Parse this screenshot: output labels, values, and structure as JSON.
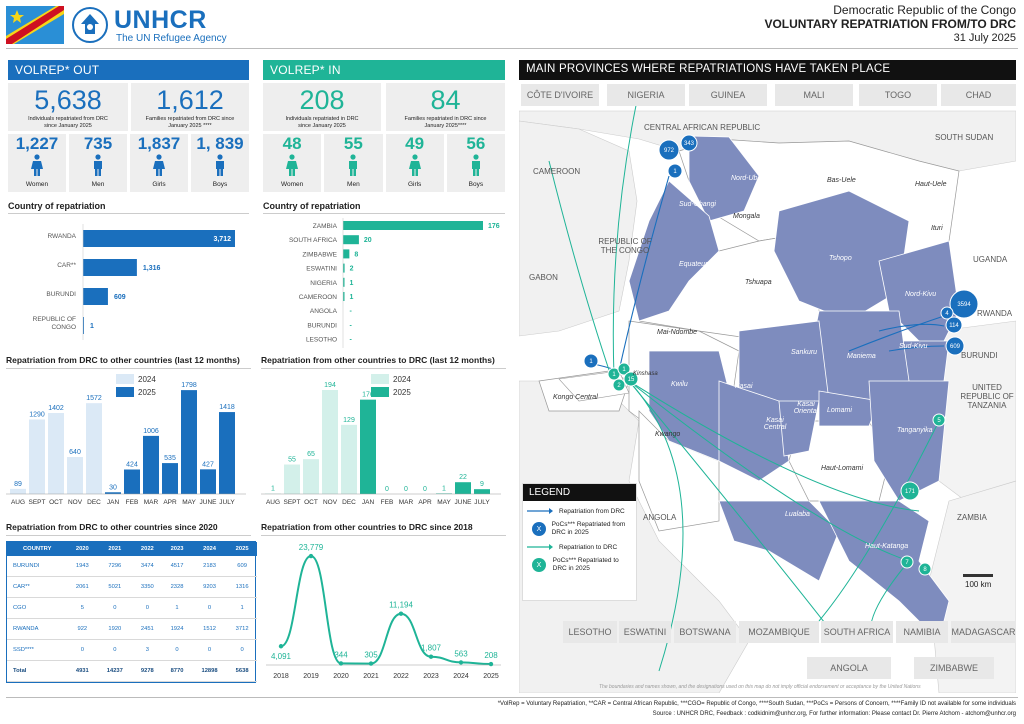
{
  "header": {
    "org": "UNHCR",
    "tagline": "The UN Refugee Agency",
    "country": "Democratic Republic of the Congo",
    "title": "VOLUNTARY REPATRIATION FROM/TO DRC",
    "date": "31 July 2025"
  },
  "colors": {
    "blue": "#1a6fbd",
    "teal": "#1fb497",
    "lightblue": "#dbe9f6",
    "lightteal": "#d3f0ea",
    "mapfill": "#7e8cbe"
  },
  "out": {
    "title": "VOLREP* OUT",
    "individuals": "5,638",
    "individuals_txt": "Individuals repatriated from DRC since January 2025",
    "families": "1,612",
    "families_txt": "Families repatriated from DRC since January 2025 ****",
    "demo": [
      {
        "v": "1,227",
        "l": "Women"
      },
      {
        "v": "735",
        "l": "Men"
      },
      {
        "v": "1,837",
        "l": "Girls"
      },
      {
        "v": "1, 839",
        "l": "Boys"
      }
    ],
    "country_title": "Country of repatriation",
    "countries": [
      {
        "name": "RWANDA",
        "value": 3712,
        "label": "3,712"
      },
      {
        "name": "CAR**",
        "value": 1316,
        "label": "1,316"
      },
      {
        "name": "BURUNDI",
        "value": 609,
        "label": "609"
      },
      {
        "name": "REPUBLIC OF CONGO",
        "value": 1,
        "label": "1"
      }
    ],
    "monthly_title": "Repatriation from DRC to other countries (last 12 months)",
    "legend": [
      "2024",
      "2025"
    ],
    "months": [
      "AUG",
      "SEPT",
      "OCT",
      "NOV",
      "DEC",
      "JAN",
      "FEB",
      "MAR",
      "APR",
      "MAY",
      "JUNE",
      "JULY"
    ],
    "monthly": [
      {
        "v": 89,
        "y": 2024
      },
      {
        "v": 1290,
        "y": 2024
      },
      {
        "v": 1402,
        "y": 2024
      },
      {
        "v": 640,
        "y": 2024
      },
      {
        "v": 1572,
        "y": 2024
      },
      {
        "v": 30,
        "y": 2025
      },
      {
        "v": 424,
        "y": 2025
      },
      {
        "v": 1006,
        "y": 2025
      },
      {
        "v": 535,
        "y": 2025
      },
      {
        "v": 1798,
        "y": 2025
      },
      {
        "v": 427,
        "y": 2025
      },
      {
        "v": 1418,
        "y": 2025
      }
    ],
    "table_title": "Repatriation from DRC to other countries since 2020",
    "table_head": [
      "COUNTRY",
      "2020",
      "2021",
      "2022",
      "2023",
      "2024",
      "2025"
    ],
    "table_rows": [
      [
        "BURUNDI",
        "1943",
        "7296",
        "3474",
        "4517",
        "2183",
        "609"
      ],
      [
        "CAR**",
        "2061",
        "5021",
        "3350",
        "2328",
        "9203",
        "1316"
      ],
      [
        "CGO",
        "5",
        "0",
        "0",
        "1",
        "0",
        "1"
      ],
      [
        "RWANDA",
        "922",
        "1920",
        "2451",
        "1924",
        "1512",
        "3712"
      ],
      [
        "SSD****",
        "0",
        "0",
        "3",
        "0",
        "0",
        "0"
      ],
      [
        "Total",
        "4931",
        "14237",
        "9278",
        "8770",
        "12898",
        "5638"
      ]
    ]
  },
  "in": {
    "title": "VOLREP* IN",
    "individuals": "208",
    "individuals_txt": "Individuals repatriated in DRC since January 2025",
    "families": "84",
    "families_txt": "Families repatriated in DRC since January 2025****",
    "demo": [
      {
        "v": "48",
        "l": "Women"
      },
      {
        "v": "55",
        "l": "Men"
      },
      {
        "v": "49",
        "l": "Girls"
      },
      {
        "v": "56",
        "l": "Boys"
      }
    ],
    "country_title": "Country of repatriation",
    "countries": [
      {
        "name": "ZAMBIA",
        "value": 176,
        "label": "176"
      },
      {
        "name": "SOUTH AFRICA",
        "value": 20,
        "label": "20"
      },
      {
        "name": "ZIMBABWE",
        "value": 8,
        "label": "8"
      },
      {
        "name": "ESWATINI",
        "value": 2,
        "label": "2"
      },
      {
        "name": "NIGERIA",
        "value": 1,
        "label": "1"
      },
      {
        "name": "CAMEROON",
        "value": 1,
        "label": "1"
      },
      {
        "name": "ANGOLA",
        "value": 0,
        "label": "-"
      },
      {
        "name": "BURUNDI",
        "value": 0,
        "label": "-"
      },
      {
        "name": "LESOTHO",
        "value": 0,
        "label": "-"
      }
    ],
    "monthly_title": "Repatriation from other countries to DRC (last 12 months)",
    "legend": [
      "2024",
      "2025"
    ],
    "months": [
      "AUG",
      "SEPT",
      "OCT",
      "NOV",
      "DEC",
      "JAN",
      "FEB",
      "MAR",
      "APR",
      "MAY",
      "JUNE",
      "JULY"
    ],
    "monthly": [
      {
        "v": 1,
        "y": 2024
      },
      {
        "v": 55,
        "y": 2024
      },
      {
        "v": 65,
        "y": 2024
      },
      {
        "v": 194,
        "y": 2024
      },
      {
        "v": 129,
        "y": 2024
      },
      {
        "v": 176,
        "y": 2025
      },
      {
        "v": 0,
        "y": 2025
      },
      {
        "v": 0,
        "y": 2025
      },
      {
        "v": 0,
        "y": 2025
      },
      {
        "v": 1,
        "y": 2025
      },
      {
        "v": 22,
        "y": 2025
      },
      {
        "v": 9,
        "y": 2025
      }
    ],
    "yearly_title": "Repatriation from other countries to DRC since 2018",
    "years": [
      "2018",
      "2019",
      "2020",
      "2021",
      "2022",
      "2023",
      "2024",
      "2025"
    ],
    "yearly": [
      4091,
      23779,
      344,
      305,
      11194,
      1807,
      563,
      208
    ],
    "yearly_labels": [
      "4,091",
      "23,779",
      "344",
      "305",
      "11,194",
      "1,807",
      "563",
      "208"
    ]
  },
  "map": {
    "title": "MAIN PROVINCES WHERE REPATRIATIONS HAVE TAKEN PLACE",
    "top_countries": [
      "CÔTE D'IVOIRE",
      "NIGERIA",
      "GUINEA",
      "MALI",
      "TOGO",
      "CHAD"
    ],
    "bottom_countries": [
      "LESOTHO",
      "ESWATINI",
      "BOTSWANA",
      "MOZAMBIQUE",
      "SOUTH AFRICA",
      "NAMIBIA",
      "MADAGASCAR"
    ],
    "bottom2": [
      "ANGOLA",
      "ZIMBABWE"
    ],
    "neighbours": {
      "car": "CENTRAL AFRICAN REPUBLIC",
      "ssd": "SOUTH SUDAN",
      "cmr": "CAMEROON",
      "gab": "GABON",
      "roc": "REPUBLIC OF THE CONGO",
      "uga": "UGANDA",
      "rwa": "RWANDA",
      "bdi": "BURUNDI",
      "tza": "UNITED REPUBLIC OF TANZANIA",
      "zmb": "ZAMBIA",
      "ago": "ANGOLA"
    },
    "provinces": [
      "Nord-Ubangi",
      "Bas-Uele",
      "Haut-Uele",
      "Sud-Ubangi",
      "Mongala",
      "Equateur",
      "Tshopo",
      "Ituri",
      "Tshuapa",
      "Nord-Kivu",
      "Mai-Ndombe",
      "Sankuru",
      "Maniema",
      "Sud-Kivu",
      "Kwilu",
      "Kasai",
      "Kasai Oriental",
      "Lomami",
      "Kasai Central",
      "Kwango",
      "Kongo Central",
      "Tanganyika",
      "Haut-Lomami",
      "Lualaba",
      "Haut-Katanga",
      "Kinshasa"
    ],
    "bubbles_out": [
      "972",
      "343",
      "1",
      "3594",
      "4",
      "114",
      "609",
      "1"
    ],
    "bubbles_in": [
      "1",
      "1",
      "2",
      "15",
      "5",
      "171",
      "7",
      "8"
    ],
    "legend_title": "LEGEND",
    "legend_items": [
      "Repatriation from DRC",
      "PoCs*** Repatriated from DRC in 2025",
      "Repatriation to DRC",
      "PoCs*** Repatriated to DRC in 2025"
    ],
    "scale": "100 km",
    "disclaimer": "The boundaries and names shown, and the designations used on this map do not imply official endorsement or acceptance by the United Nations"
  },
  "footer": {
    "line1": "*VolRep = Voluntary Repatriation, **CAR = Central African Republic, ***CGO= Republic of Congo, ****South Sudan, ***PoCs = Persons of Concern, ****Family ID not available for some individuals",
    "line2": "Source : UNHCR DRC, Feedback : codkidnim@unhcr.org,    For further information: Please contact Dr. Pierre Atchom - atchom@unhcr.org"
  }
}
